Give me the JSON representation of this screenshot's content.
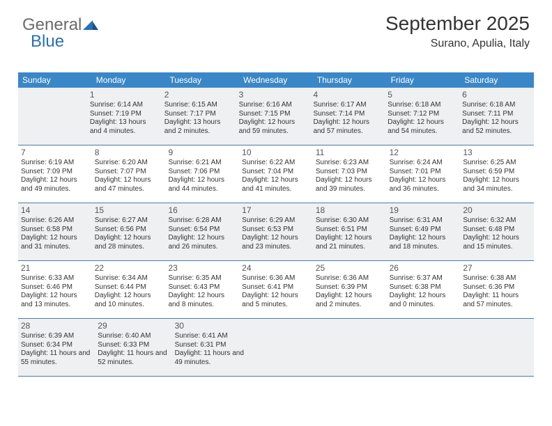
{
  "brand": {
    "part1": "General",
    "part2": "Blue"
  },
  "title": "September 2025",
  "location": "Surano, Apulia, Italy",
  "colors": {
    "header_bg": "#3a87c8",
    "header_text": "#ffffff",
    "row_border": "#4a7aa8",
    "shaded_bg": "#eef0f2",
    "body_text": "#333333",
    "daynum_text": "#555555",
    "brand_gray": "#6a6a6a",
    "brand_blue": "#2a6fb5"
  },
  "day_headers": [
    "Sunday",
    "Monday",
    "Tuesday",
    "Wednesday",
    "Thursday",
    "Friday",
    "Saturday"
  ],
  "weeks": [
    [
      {
        "empty": true
      },
      {
        "num": "1",
        "sunrise": "Sunrise: 6:14 AM",
        "sunset": "Sunset: 7:19 PM",
        "daylight": "Daylight: 13 hours and 4 minutes."
      },
      {
        "num": "2",
        "sunrise": "Sunrise: 6:15 AM",
        "sunset": "Sunset: 7:17 PM",
        "daylight": "Daylight: 13 hours and 2 minutes."
      },
      {
        "num": "3",
        "sunrise": "Sunrise: 6:16 AM",
        "sunset": "Sunset: 7:15 PM",
        "daylight": "Daylight: 12 hours and 59 minutes."
      },
      {
        "num": "4",
        "sunrise": "Sunrise: 6:17 AM",
        "sunset": "Sunset: 7:14 PM",
        "daylight": "Daylight: 12 hours and 57 minutes."
      },
      {
        "num": "5",
        "sunrise": "Sunrise: 6:18 AM",
        "sunset": "Sunset: 7:12 PM",
        "daylight": "Daylight: 12 hours and 54 minutes."
      },
      {
        "num": "6",
        "sunrise": "Sunrise: 6:18 AM",
        "sunset": "Sunset: 7:11 PM",
        "daylight": "Daylight: 12 hours and 52 minutes."
      }
    ],
    [
      {
        "num": "7",
        "sunrise": "Sunrise: 6:19 AM",
        "sunset": "Sunset: 7:09 PM",
        "daylight": "Daylight: 12 hours and 49 minutes."
      },
      {
        "num": "8",
        "sunrise": "Sunrise: 6:20 AM",
        "sunset": "Sunset: 7:07 PM",
        "daylight": "Daylight: 12 hours and 47 minutes."
      },
      {
        "num": "9",
        "sunrise": "Sunrise: 6:21 AM",
        "sunset": "Sunset: 7:06 PM",
        "daylight": "Daylight: 12 hours and 44 minutes."
      },
      {
        "num": "10",
        "sunrise": "Sunrise: 6:22 AM",
        "sunset": "Sunset: 7:04 PM",
        "daylight": "Daylight: 12 hours and 41 minutes."
      },
      {
        "num": "11",
        "sunrise": "Sunrise: 6:23 AM",
        "sunset": "Sunset: 7:03 PM",
        "daylight": "Daylight: 12 hours and 39 minutes."
      },
      {
        "num": "12",
        "sunrise": "Sunrise: 6:24 AM",
        "sunset": "Sunset: 7:01 PM",
        "daylight": "Daylight: 12 hours and 36 minutes."
      },
      {
        "num": "13",
        "sunrise": "Sunrise: 6:25 AM",
        "sunset": "Sunset: 6:59 PM",
        "daylight": "Daylight: 12 hours and 34 minutes."
      }
    ],
    [
      {
        "num": "14",
        "sunrise": "Sunrise: 6:26 AM",
        "sunset": "Sunset: 6:58 PM",
        "daylight": "Daylight: 12 hours and 31 minutes."
      },
      {
        "num": "15",
        "sunrise": "Sunrise: 6:27 AM",
        "sunset": "Sunset: 6:56 PM",
        "daylight": "Daylight: 12 hours and 28 minutes."
      },
      {
        "num": "16",
        "sunrise": "Sunrise: 6:28 AM",
        "sunset": "Sunset: 6:54 PM",
        "daylight": "Daylight: 12 hours and 26 minutes."
      },
      {
        "num": "17",
        "sunrise": "Sunrise: 6:29 AM",
        "sunset": "Sunset: 6:53 PM",
        "daylight": "Daylight: 12 hours and 23 minutes."
      },
      {
        "num": "18",
        "sunrise": "Sunrise: 6:30 AM",
        "sunset": "Sunset: 6:51 PM",
        "daylight": "Daylight: 12 hours and 21 minutes."
      },
      {
        "num": "19",
        "sunrise": "Sunrise: 6:31 AM",
        "sunset": "Sunset: 6:49 PM",
        "daylight": "Daylight: 12 hours and 18 minutes."
      },
      {
        "num": "20",
        "sunrise": "Sunrise: 6:32 AM",
        "sunset": "Sunset: 6:48 PM",
        "daylight": "Daylight: 12 hours and 15 minutes."
      }
    ],
    [
      {
        "num": "21",
        "sunrise": "Sunrise: 6:33 AM",
        "sunset": "Sunset: 6:46 PM",
        "daylight": "Daylight: 12 hours and 13 minutes."
      },
      {
        "num": "22",
        "sunrise": "Sunrise: 6:34 AM",
        "sunset": "Sunset: 6:44 PM",
        "daylight": "Daylight: 12 hours and 10 minutes."
      },
      {
        "num": "23",
        "sunrise": "Sunrise: 6:35 AM",
        "sunset": "Sunset: 6:43 PM",
        "daylight": "Daylight: 12 hours and 8 minutes."
      },
      {
        "num": "24",
        "sunrise": "Sunrise: 6:36 AM",
        "sunset": "Sunset: 6:41 PM",
        "daylight": "Daylight: 12 hours and 5 minutes."
      },
      {
        "num": "25",
        "sunrise": "Sunrise: 6:36 AM",
        "sunset": "Sunset: 6:39 PM",
        "daylight": "Daylight: 12 hours and 2 minutes."
      },
      {
        "num": "26",
        "sunrise": "Sunrise: 6:37 AM",
        "sunset": "Sunset: 6:38 PM",
        "daylight": "Daylight: 12 hours and 0 minutes."
      },
      {
        "num": "27",
        "sunrise": "Sunrise: 6:38 AM",
        "sunset": "Sunset: 6:36 PM",
        "daylight": "Daylight: 11 hours and 57 minutes."
      }
    ],
    [
      {
        "num": "28",
        "sunrise": "Sunrise: 6:39 AM",
        "sunset": "Sunset: 6:34 PM",
        "daylight": "Daylight: 11 hours and 55 minutes."
      },
      {
        "num": "29",
        "sunrise": "Sunrise: 6:40 AM",
        "sunset": "Sunset: 6:33 PM",
        "daylight": "Daylight: 11 hours and 52 minutes."
      },
      {
        "num": "30",
        "sunrise": "Sunrise: 6:41 AM",
        "sunset": "Sunset: 6:31 PM",
        "daylight": "Daylight: 11 hours and 49 minutes."
      },
      {
        "empty": true
      },
      {
        "empty": true
      },
      {
        "empty": true
      },
      {
        "empty": true
      }
    ]
  ]
}
